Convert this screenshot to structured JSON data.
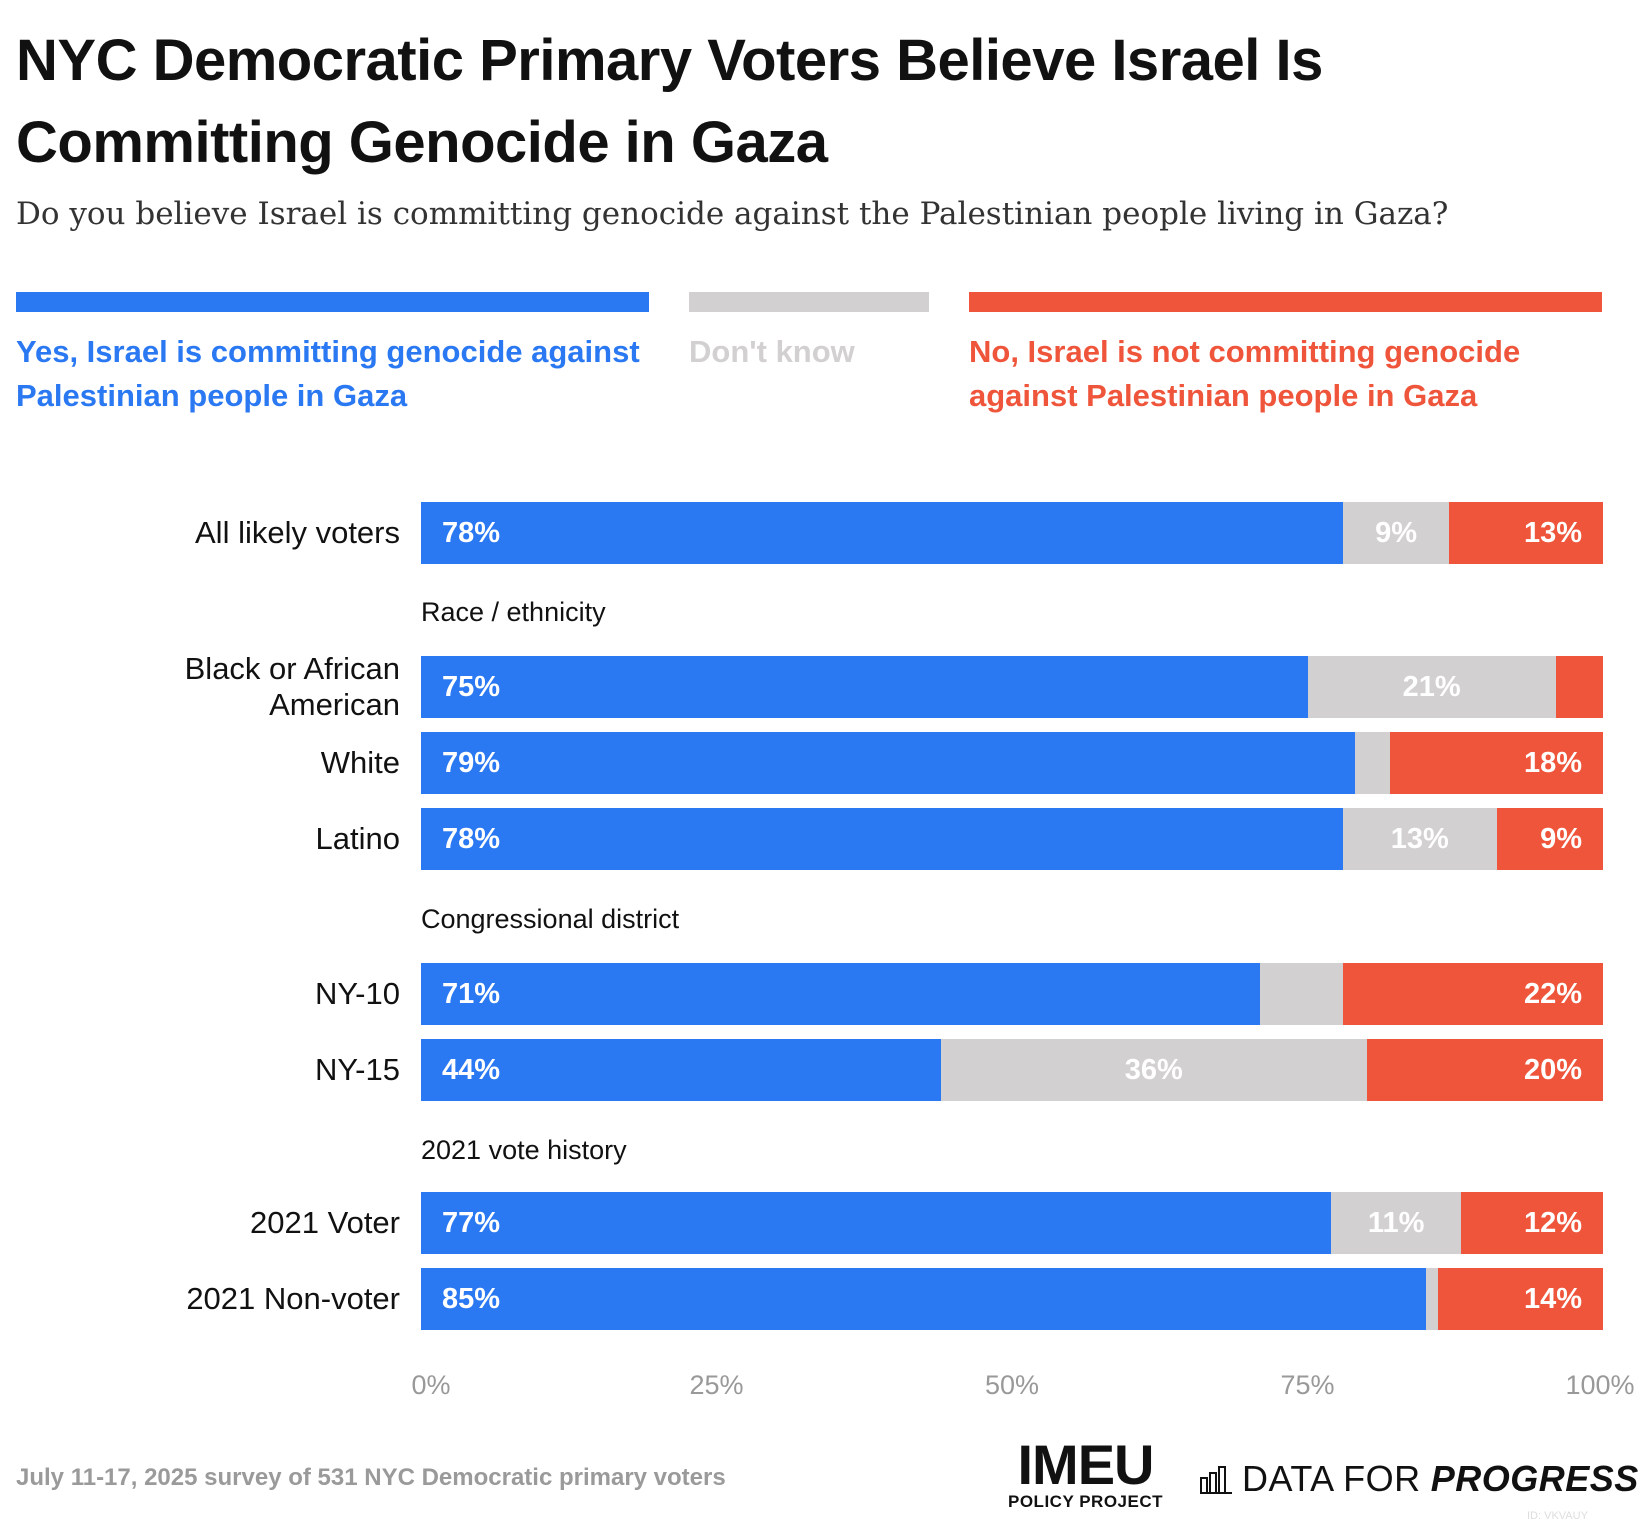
{
  "title": "NYC Democratic Primary Voters Believe Israel Is Committing Genocide in Gaza",
  "subtitle": "Do you believe Israel is committing genocide against the Palestinian people living in Gaza?",
  "colors": {
    "yes": "#2a78f2",
    "dontknow": "#d3d0d2",
    "no": "#ef553b"
  },
  "legend": {
    "yes": "Yes, Israel is committing genocide against Palestinian people in Gaza",
    "dontknow": "Don't know",
    "no": "No, Israel is not committing genocide against Palestinian people in Gaza"
  },
  "chart_data": {
    "type": "bar",
    "orientation": "horizontal",
    "stacked": true,
    "xlim": [
      0,
      100
    ],
    "x_ticks": [
      "0%",
      "25%",
      "50%",
      "75%",
      "100%"
    ],
    "series_names": [
      "Yes, Israel is committing genocide against Palestinian people in Gaza",
      "Don't know",
      "No, Israel is not committing genocide against Palestinian people in Gaza"
    ],
    "groups": [
      {
        "label": "",
        "rows": [
          {
            "label": "All likely voters",
            "yes": 78,
            "dontknow": 9,
            "no": 13,
            "yes_label": "78%",
            "dontknow_label": "9%",
            "no_label": "13%"
          }
        ]
      },
      {
        "label": "Race / ethnicity",
        "rows": [
          {
            "label": "Black or African American",
            "yes": 75,
            "dontknow": 21,
            "no": 4,
            "yes_label": "75%",
            "dontknow_label": "21%",
            "no_label": ""
          },
          {
            "label": "White",
            "yes": 79,
            "dontknow": 3,
            "no": 18,
            "yes_label": "79%",
            "dontknow_label": "",
            "no_label": "18%"
          },
          {
            "label": "Latino",
            "yes": 78,
            "dontknow": 13,
            "no": 9,
            "yes_label": "78%",
            "dontknow_label": "13%",
            "no_label": "9%"
          }
        ]
      },
      {
        "label": "Congressional district",
        "rows": [
          {
            "label": "NY-10",
            "yes": 71,
            "dontknow": 7,
            "no": 22,
            "yes_label": "71%",
            "dontknow_label": "",
            "no_label": "22%"
          },
          {
            "label": "NY-15",
            "yes": 44,
            "dontknow": 36,
            "no": 20,
            "yes_label": "44%",
            "dontknow_label": "36%",
            "no_label": "20%"
          }
        ]
      },
      {
        "label": "2021 vote history",
        "rows": [
          {
            "label": "2021 Voter",
            "yes": 77,
            "dontknow": 11,
            "no": 12,
            "yes_label": "77%",
            "dontknow_label": "11%",
            "no_label": "12%"
          },
          {
            "label": "2021 Non-voter",
            "yes": 85,
            "dontknow": 1,
            "no": 14,
            "yes_label": "85%",
            "dontknow_label": "",
            "no_label": "14%"
          }
        ]
      }
    ]
  },
  "footer": {
    "note": "July 11-17, 2025 survey of 531 NYC Democratic primary voters",
    "imeu_main": "IMEU",
    "imeu_sub": "POLICY PROJECT",
    "dfp_light": "DATA FOR",
    "dfp_bold": "PROGRESS",
    "chart_id": "ID: VKVAUY"
  }
}
